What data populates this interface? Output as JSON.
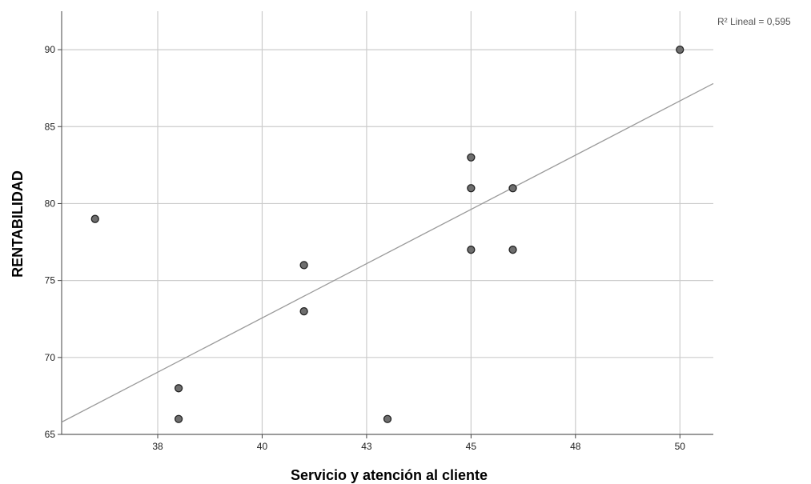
{
  "chart_data": {
    "type": "scatter",
    "title": "",
    "xlabel": "Servicio y atención al cliente",
    "ylabel": "RENTABILIDAD",
    "xlim": [
      35.5,
      51.1
    ],
    "ylim": [
      65,
      92.5
    ],
    "xticks": [
      {
        "value": 37.8,
        "label": "38"
      },
      {
        "value": 40.3,
        "label": "40"
      },
      {
        "value": 42.8,
        "label": "43"
      },
      {
        "value": 45.3,
        "label": "45"
      },
      {
        "value": 47.8,
        "label": "48"
      },
      {
        "value": 50.3,
        "label": "50"
      }
    ],
    "yticks": [
      {
        "value": 65,
        "label": "65"
      },
      {
        "value": 70,
        "label": "70"
      },
      {
        "value": 75,
        "label": "75"
      },
      {
        "value": 80,
        "label": "80"
      },
      {
        "value": 85,
        "label": "85"
      },
      {
        "value": 90,
        "label": "90"
      }
    ],
    "points": [
      {
        "x": 36.3,
        "y": 79
      },
      {
        "x": 38.3,
        "y": 68
      },
      {
        "x": 38.3,
        "y": 66
      },
      {
        "x": 41.3,
        "y": 76
      },
      {
        "x": 41.3,
        "y": 73
      },
      {
        "x": 43.3,
        "y": 66
      },
      {
        "x": 45.3,
        "y": 83
      },
      {
        "x": 45.3,
        "y": 81
      },
      {
        "x": 45.3,
        "y": 77
      },
      {
        "x": 46.3,
        "y": 81
      },
      {
        "x": 46.3,
        "y": 77
      },
      {
        "x": 50.3,
        "y": 90
      }
    ],
    "fit_line": {
      "label": "R² Lineal = 0,595",
      "x": [
        35.5,
        51.1
      ],
      "y": [
        65.8,
        87.8
      ]
    },
    "grid": true,
    "colors": {
      "marker_fill": "#6e6e6e",
      "marker_stroke": "#222222",
      "grid": "#cccccc",
      "fit": "#9a9a9a",
      "axis": "#444444"
    }
  }
}
